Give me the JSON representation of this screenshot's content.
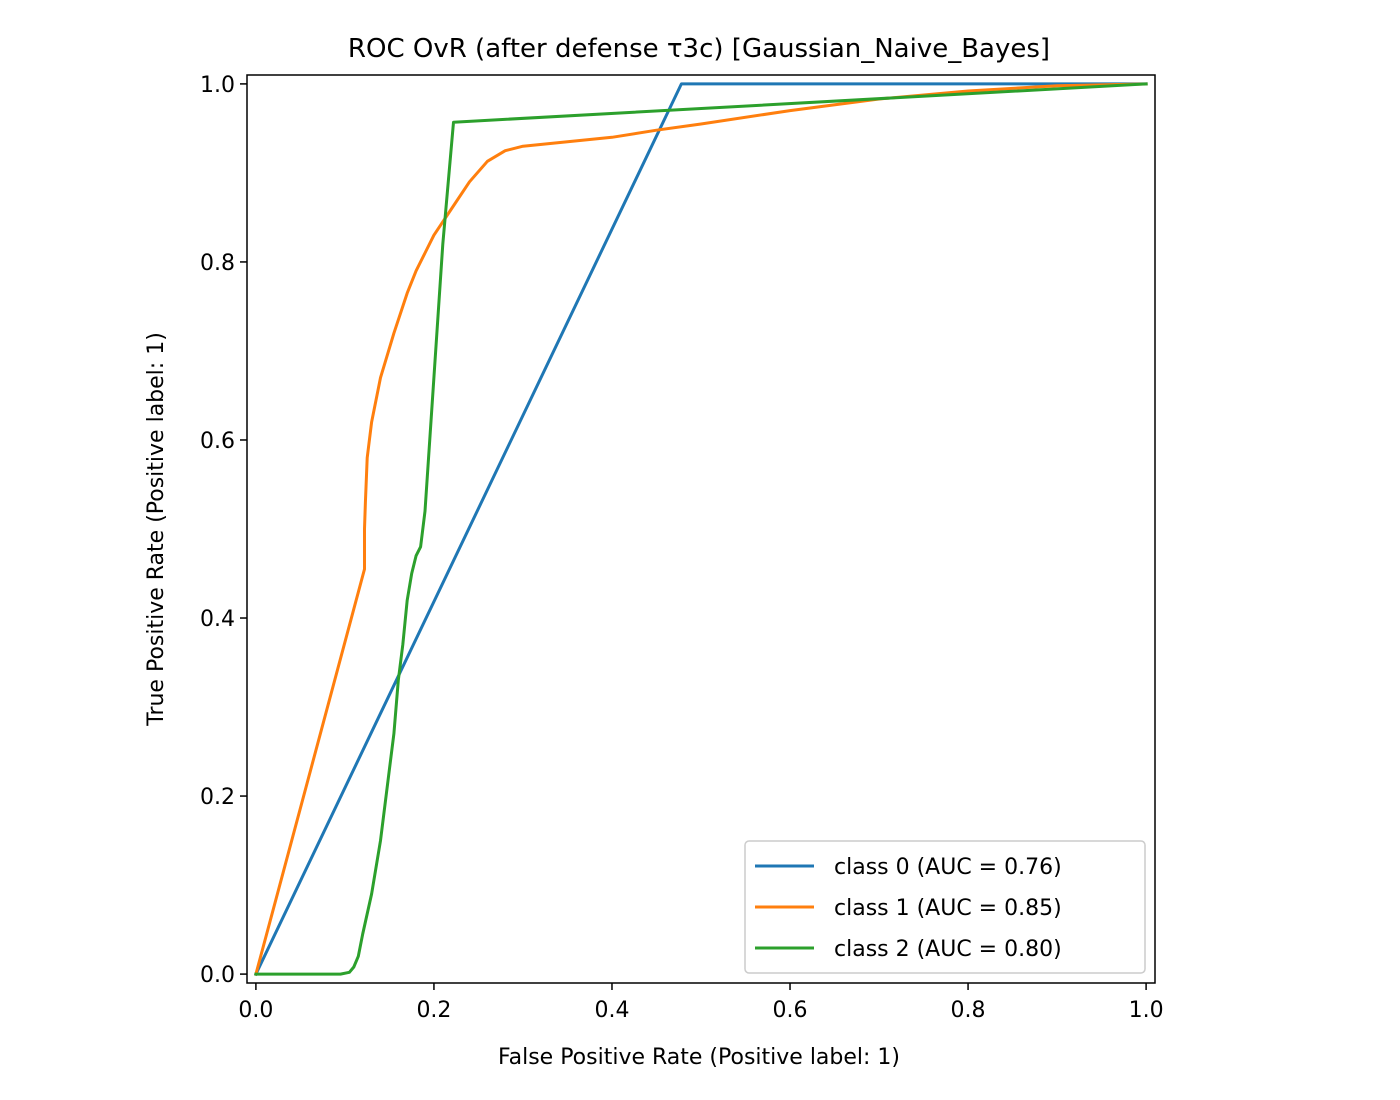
{
  "chart_data": {
    "type": "line",
    "title": "ROC OvR (after defense τ3c) [Gaussian_Naive_Bayes]",
    "xlabel": "False Positive Rate (Positive label: 1)",
    "ylabel": "True Positive Rate (Positive label: 1)",
    "xlim": [
      -0.01,
      1.01
    ],
    "ylim": [
      -0.01,
      1.01
    ],
    "xticks": [
      "0.0",
      "0.2",
      "0.4",
      "0.6",
      "0.8",
      "1.0"
    ],
    "yticks": [
      "0.0",
      "0.2",
      "0.4",
      "0.6",
      "0.8",
      "1.0"
    ],
    "grid": false,
    "legend_position": "lower-right",
    "series": [
      {
        "name": "class 0 (AUC = 0.76)",
        "color": "#1f77b4",
        "x": [
          0.0,
          0.478,
          1.0
        ],
        "y": [
          0.0,
          1.0,
          1.0
        ]
      },
      {
        "name": "class 1 (AUC = 0.85)",
        "color": "#ff7f0e",
        "x": [
          0.0,
          0.122,
          0.122,
          0.123,
          0.125,
          0.13,
          0.14,
          0.155,
          0.17,
          0.18,
          0.19,
          0.2,
          0.22,
          0.24,
          0.26,
          0.28,
          0.3,
          0.35,
          0.4,
          0.45,
          0.5,
          0.6,
          0.7,
          0.8,
          0.9,
          1.0
        ],
        "y": [
          0.0,
          0.455,
          0.5,
          0.53,
          0.58,
          0.62,
          0.67,
          0.72,
          0.765,
          0.79,
          0.81,
          0.83,
          0.86,
          0.89,
          0.913,
          0.925,
          0.93,
          0.935,
          0.94,
          0.948,
          0.955,
          0.97,
          0.983,
          0.992,
          0.998,
          1.0
        ]
      },
      {
        "name": "class 2 (AUC = 0.80)",
        "color": "#2ca02c",
        "x": [
          0.0,
          0.095,
          0.105,
          0.11,
          0.115,
          0.12,
          0.13,
          0.14,
          0.15,
          0.155,
          0.16,
          0.165,
          0.17,
          0.175,
          0.18,
          0.185,
          0.19,
          0.2,
          0.21,
          0.222,
          1.0
        ],
        "y": [
          0.0,
          0.0,
          0.002,
          0.008,
          0.02,
          0.045,
          0.09,
          0.15,
          0.23,
          0.27,
          0.33,
          0.37,
          0.42,
          0.45,
          0.47,
          0.48,
          0.52,
          0.67,
          0.82,
          0.957,
          1.0
        ]
      }
    ]
  }
}
